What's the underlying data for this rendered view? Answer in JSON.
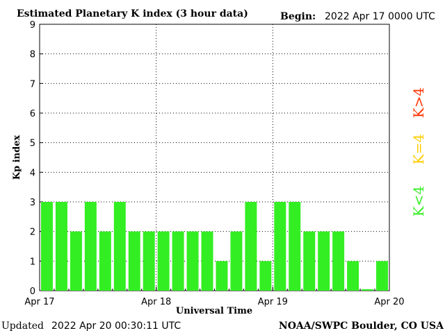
{
  "header": {
    "title": "Estimated Planetary K index (3 hour data)",
    "begin_label": "Begin:",
    "begin_value": "2022 Apr 17 0000 UTC"
  },
  "footer": {
    "updated_label": "Updated",
    "updated_value": "2022 Apr 20 00:30:11 UTC",
    "source": "NOAA/SWPC Boulder, CO USA"
  },
  "legend": {
    "items": [
      {
        "label": "K<4",
        "color": "#33ee22"
      },
      {
        "label": "K=4",
        "color": "#ffcc00"
      },
      {
        "label": "K>4",
        "color": "#ff3300"
      }
    ]
  },
  "chart_data": {
    "type": "bar",
    "title": "Estimated Planetary K index (3 hour data)",
    "xlabel": "Universal Time",
    "ylabel": "Kp index",
    "ylim": [
      0,
      9
    ],
    "yticks": [
      0,
      1,
      2,
      3,
      4,
      5,
      6,
      7,
      8,
      9
    ],
    "xticks": [
      "Apr 17",
      "Apr 18",
      "Apr 19",
      "Apr 20"
    ],
    "grid": true,
    "bar_color": "#33ee22",
    "values": [
      3,
      3,
      2,
      3,
      2,
      3,
      2,
      2,
      2,
      2,
      2,
      2,
      1,
      2,
      3,
      1,
      3,
      3,
      2,
      2,
      2,
      1,
      0.05,
      1
    ]
  }
}
